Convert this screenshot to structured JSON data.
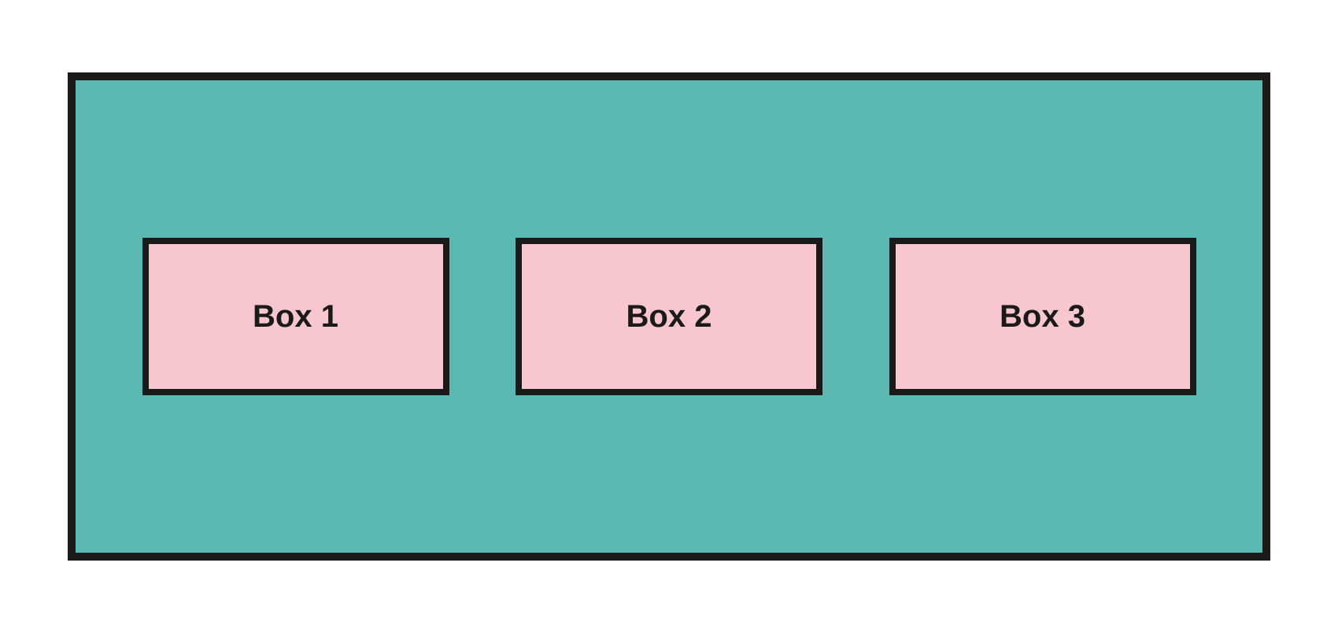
{
  "diagram": {
    "type": "infographic",
    "container": {
      "background_color": "#5cb8b2",
      "border_color": "#1a1a1a",
      "border_width": 10
    },
    "boxes": [
      {
        "label": "Box 1"
      },
      {
        "label": "Box 2"
      },
      {
        "label": "Box 3"
      }
    ],
    "box_style": {
      "background_color": "#f7c6ce",
      "border_color": "#1a1a1a",
      "border_width": 8,
      "font_size": 40,
      "font_weight": 700,
      "text_color": "#1a1a1a"
    },
    "page_background": "#ffffff"
  }
}
